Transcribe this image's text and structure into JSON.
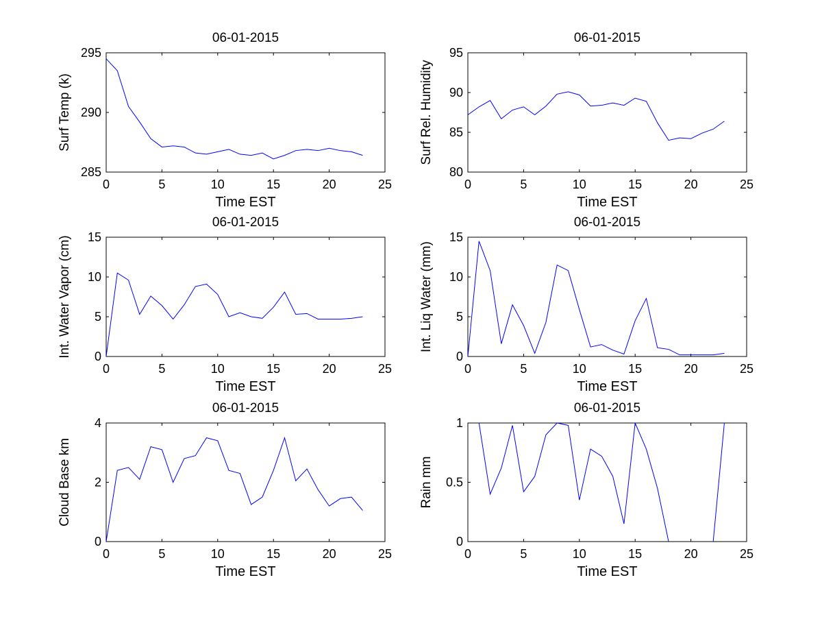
{
  "chart_data": [
    {
      "type": "line",
      "title": "06-01-2015",
      "xlabel": "Time EST",
      "ylabel": "Surf Temp (k)",
      "xlim": [
        0,
        25
      ],
      "ylim": [
        285,
        295
      ],
      "xticks": [
        0,
        5,
        10,
        15,
        20,
        25
      ],
      "yticks": [
        285,
        290,
        295
      ],
      "line_color": "#0000ff",
      "x": [
        0,
        1,
        2,
        3,
        4,
        5,
        6,
        7,
        8,
        9,
        10,
        11,
        12,
        13,
        14,
        15,
        16,
        17,
        18,
        19,
        20,
        21,
        22,
        23
      ],
      "y": [
        294.5,
        293.5,
        290.5,
        289.2,
        287.8,
        287.1,
        287.2,
        287.1,
        286.6,
        286.5,
        286.7,
        286.9,
        286.5,
        286.4,
        286.6,
        286.1,
        286.4,
        286.8,
        286.9,
        286.8,
        287.0,
        286.8,
        286.7,
        286.4
      ]
    },
    {
      "type": "line",
      "title": "06-01-2015",
      "xlabel": "Time EST",
      "ylabel": "Surf Rel. Humidity",
      "xlim": [
        0,
        25
      ],
      "ylim": [
        80,
        95
      ],
      "xticks": [
        0,
        5,
        10,
        15,
        20,
        25
      ],
      "yticks": [
        80,
        85,
        90,
        95
      ],
      "line_color": "#0000ff",
      "x": [
        0,
        1,
        2,
        3,
        4,
        5,
        6,
        7,
        8,
        9,
        10,
        11,
        12,
        13,
        14,
        15,
        16,
        17,
        18,
        19,
        20,
        21,
        22,
        23
      ],
      "y": [
        87.2,
        88.2,
        89.0,
        86.7,
        87.8,
        88.2,
        87.2,
        88.3,
        89.8,
        90.1,
        89.7,
        88.3,
        88.4,
        88.7,
        88.4,
        89.3,
        88.9,
        86.2,
        84.0,
        84.3,
        84.2,
        84.9,
        85.4,
        86.4
      ]
    },
    {
      "type": "line",
      "title": "06-01-2015",
      "xlabel": "Time EST",
      "ylabel": "Int. Water Vapor (cm)",
      "xlim": [
        0,
        25
      ],
      "ylim": [
        0,
        15
      ],
      "xticks": [
        0,
        5,
        10,
        15,
        20,
        25
      ],
      "yticks": [
        0,
        5,
        10,
        15
      ],
      "line_color": "#0000ff",
      "x": [
        0,
        1,
        2,
        3,
        4,
        5,
        6,
        7,
        8,
        9,
        10,
        11,
        12,
        13,
        14,
        15,
        16,
        17,
        18,
        19,
        20,
        21,
        22,
        23
      ],
      "y": [
        0,
        10.5,
        9.6,
        5.3,
        7.6,
        6.4,
        4.7,
        6.5,
        8.8,
        9.1,
        7.8,
        5.0,
        5.5,
        5.0,
        4.8,
        6.2,
        8.1,
        5.3,
        5.4,
        4.7,
        4.7,
        4.7,
        4.8,
        5.0
      ]
    },
    {
      "type": "line",
      "title": "06-01-2015",
      "xlabel": "Time EST",
      "ylabel": "Int. Liq Water (mm)",
      "xlim": [
        0,
        25
      ],
      "ylim": [
        0,
        15
      ],
      "xticks": [
        0,
        5,
        10,
        15,
        20,
        25
      ],
      "yticks": [
        0,
        5,
        10,
        15
      ],
      "line_color": "#0000ff",
      "x": [
        0,
        1,
        2,
        3,
        4,
        5,
        6,
        7,
        8,
        9,
        10,
        11,
        12,
        13,
        14,
        15,
        16,
        17,
        18,
        19,
        20,
        21,
        22,
        23
      ],
      "y": [
        0,
        14.5,
        10.8,
        1.6,
        6.5,
        3.9,
        0.4,
        4.3,
        11.5,
        10.8,
        5.9,
        1.2,
        1.5,
        0.8,
        0.3,
        4.5,
        7.3,
        1.1,
        0.9,
        0.2,
        0.2,
        0.2,
        0.2,
        0.4
      ]
    },
    {
      "type": "line",
      "title": "06-01-2015",
      "xlabel": "Time EST",
      "ylabel": "Cloud Base km",
      "xlim": [
        0,
        25
      ],
      "ylim": [
        0,
        4
      ],
      "xticks": [
        0,
        5,
        10,
        15,
        20,
        25
      ],
      "yticks": [
        0,
        2,
        4
      ],
      "line_color": "#0000ff",
      "x": [
        0,
        1,
        2,
        3,
        4,
        5,
        6,
        7,
        8,
        9,
        10,
        11,
        12,
        13,
        14,
        15,
        16,
        17,
        18,
        19,
        20,
        21,
        22,
        23
      ],
      "y": [
        0,
        2.4,
        2.5,
        2.1,
        3.2,
        3.1,
        2.0,
        2.8,
        2.9,
        3.5,
        3.4,
        2.4,
        2.3,
        1.25,
        1.5,
        2.4,
        3.5,
        2.05,
        2.45,
        1.75,
        1.2,
        1.45,
        1.5,
        1.05
      ]
    },
    {
      "type": "line",
      "title": "06-01-2015",
      "xlabel": "Time EST",
      "ylabel": "Rain mm",
      "xlim": [
        0,
        25
      ],
      "ylim": [
        0,
        1
      ],
      "xticks": [
        0,
        5,
        10,
        15,
        20,
        25
      ],
      "yticks": [
        0,
        0.5,
        1
      ],
      "line_color": "#0000ff",
      "x": [
        1,
        2,
        3,
        4,
        5,
        6,
        7,
        8,
        9,
        10,
        11,
        12,
        13,
        14,
        15,
        16,
        17,
        18,
        19,
        20,
        21,
        22,
        23
      ],
      "y": [
        1.0,
        0.4,
        0.62,
        0.98,
        0.42,
        0.55,
        0.9,
        1.0,
        0.98,
        0.35,
        0.78,
        0.72,
        0.55,
        0.15,
        1.0,
        0.78,
        0.45,
        0,
        null,
        null,
        null,
        0,
        1.0
      ]
    }
  ]
}
